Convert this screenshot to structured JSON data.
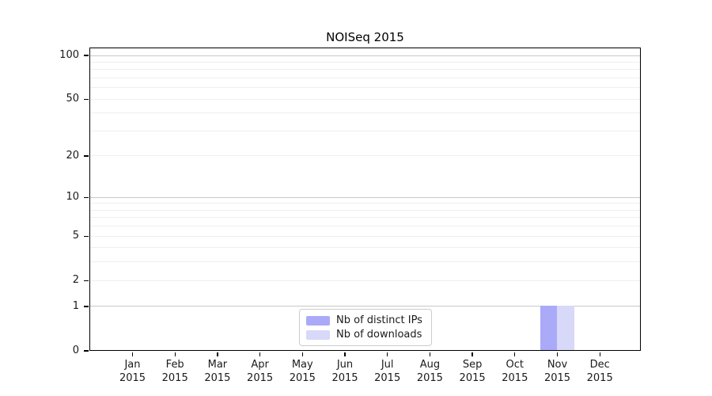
{
  "chart_data": {
    "type": "bar",
    "title": "NOISeq 2015",
    "xlabel": "",
    "ylabel": "",
    "year": "2015",
    "categories": [
      "Jan",
      "Feb",
      "Mar",
      "Apr",
      "May",
      "Jun",
      "Jul",
      "Aug",
      "Sep",
      "Oct",
      "Nov",
      "Dec"
    ],
    "series": [
      {
        "name": "Nb of distinct IPs",
        "color": "#aaaaf8",
        "values": [
          0,
          0,
          0,
          0,
          0,
          0,
          0,
          0,
          0,
          0,
          1,
          0
        ]
      },
      {
        "name": "Nb of downloads",
        "color": "#d8d8f8",
        "values": [
          0,
          0,
          0,
          0,
          0,
          0,
          0,
          0,
          0,
          0,
          1,
          0
        ]
      }
    ],
    "y_axis": {
      "scale": "log1p",
      "tick_values": [
        0,
        1,
        2,
        5,
        10,
        20,
        50,
        100
      ],
      "tick_labels": [
        "0",
        "1",
        "2",
        "5",
        "10",
        "20",
        "50",
        "100"
      ],
      "major_gridlines": [
        1,
        10,
        100
      ],
      "minor_gridlines": [
        2,
        3,
        4,
        5,
        6,
        7,
        8,
        9,
        20,
        30,
        40,
        50,
        60,
        70,
        80,
        90
      ],
      "ylim": [
        0,
        113
      ]
    },
    "legend_position": "lower center",
    "grid": "horizontal",
    "colors": {
      "grid_major": "#c9c9c9",
      "grid_minor": "#efefef",
      "spine": "#000000",
      "tick_text": "#1a1a1a",
      "background": "#ffffff"
    }
  }
}
